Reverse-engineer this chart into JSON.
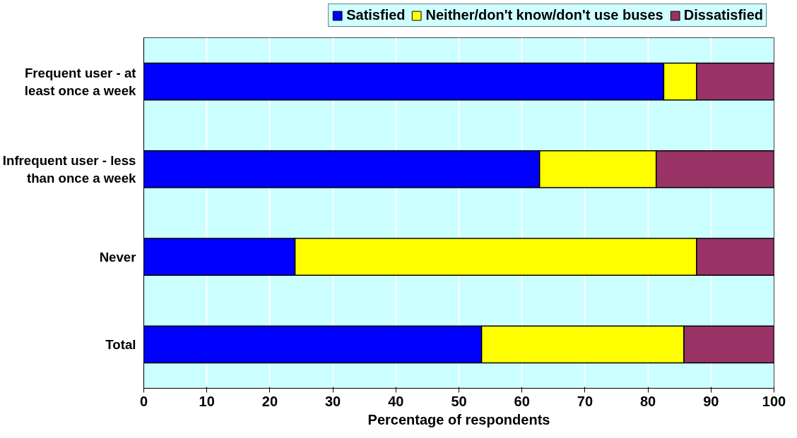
{
  "chart_data": {
    "type": "bar",
    "orientation": "horizontal",
    "stacked": true,
    "xlabel": "Percentage of respondents",
    "categories": [
      "Frequent user - at least once a week",
      "Infrequent user - less than once a week",
      "Never",
      "Total"
    ],
    "series": [
      {
        "name": "Satisfied",
        "color": "#0000ff",
        "values": [
          82.5,
          62.8,
          24.0,
          53.6
        ]
      },
      {
        "name": "Neither/don't know/don't use buses",
        "color": "#ffff00",
        "values": [
          5.2,
          18.5,
          63.7,
          32.1
        ]
      },
      {
        "name": "Dissatisfied",
        "color": "#993366",
        "values": [
          12.3,
          18.7,
          12.3,
          14.3
        ]
      }
    ],
    "xlim": [
      0,
      100
    ],
    "xticks": [
      0,
      10,
      20,
      30,
      40,
      50,
      60,
      70,
      80,
      90,
      100
    ],
    "grid": "x",
    "legend": "top"
  }
}
